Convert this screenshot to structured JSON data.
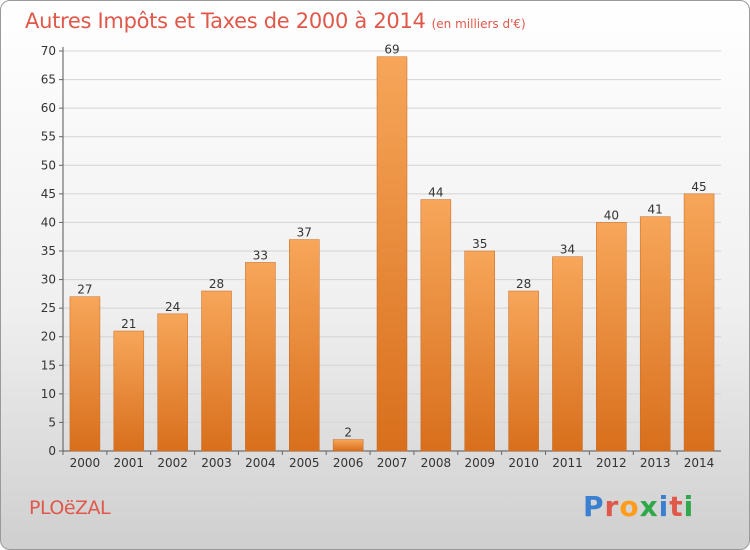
{
  "header": {
    "title": "Autres Impôts et Taxes de 2000 à 2014",
    "subtitle": "(en milliers d'€)"
  },
  "footer": {
    "commune": "PLOëZAL",
    "brand": "Proxiti"
  },
  "colors": {
    "title": "#e0584a",
    "bar_light": "#f7a65a",
    "bar_dark": "#d86f1c",
    "logo": [
      "#3b7fd1",
      "#e0584a",
      "#ff9d1a",
      "#2fa84a",
      "#3b7fd1",
      "#e0584a",
      "#2fa84a"
    ]
  },
  "chart_data": {
    "type": "bar",
    "title": "Autres Impôts et Taxes de 2000 à 2014",
    "xlabel": "",
    "ylabel": "",
    "categories": [
      "2000",
      "2001",
      "2002",
      "2003",
      "2004",
      "2005",
      "2006",
      "2007",
      "2008",
      "2009",
      "2010",
      "2011",
      "2012",
      "2013",
      "2014"
    ],
    "values": [
      27,
      21,
      24,
      28,
      33,
      37,
      2,
      69,
      44,
      35,
      28,
      34,
      40,
      41,
      45
    ],
    "ylim": [
      0,
      70
    ],
    "yticks": [
      0,
      5,
      10,
      15,
      20,
      25,
      30,
      35,
      40,
      45,
      50,
      55,
      60,
      65,
      70
    ],
    "grid": true,
    "data_labels": true
  }
}
